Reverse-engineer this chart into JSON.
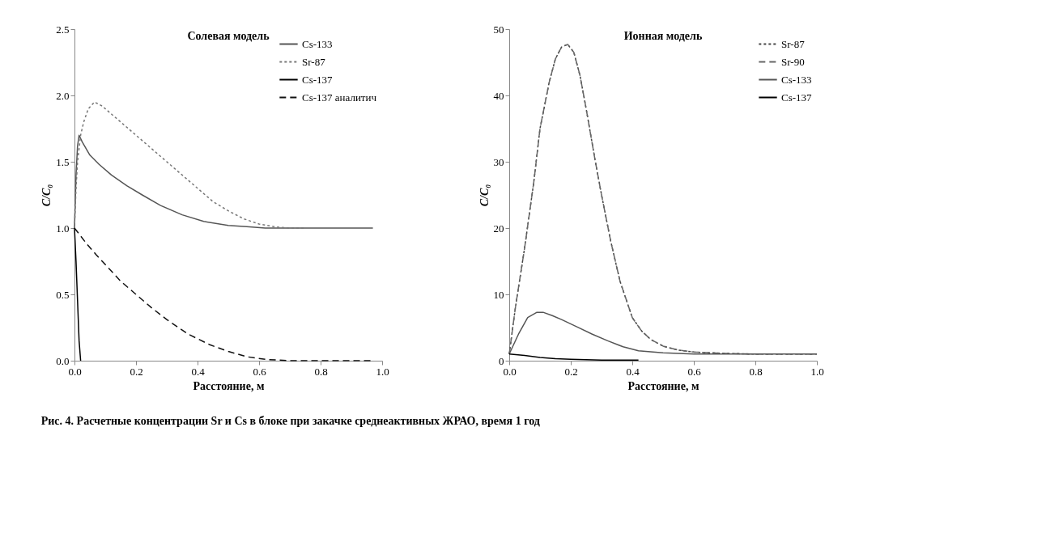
{
  "chart_data": [
    {
      "type": "line",
      "title": "Солевая модель",
      "annotations": [
        "Рис. 4. Расчетные концентрации Sr и Cs в блоке при закачке среднеактивных ЖРАО, время 1 год"
      ],
      "xlabel": "Расстояние, м",
      "ylabel": "C/C₀",
      "legend": "top right",
      "grid": false,
      "marker": "none",
      "xlim": [
        0,
        1.0
      ],
      "xticks": [
        {
          "value": 0,
          "label": "0.0"
        },
        {
          "value": 0.2,
          "label": "0.2"
        },
        {
          "value": 0.4,
          "label": "0.4"
        },
        {
          "value": 0.6,
          "label": "0.6"
        },
        {
          "value": 0.8,
          "label": "0.8"
        },
        {
          "value": 1,
          "label": "1.0"
        }
      ],
      "ylim": [
        0,
        2.5
      ],
      "yticks": [
        {
          "value": 0,
          "label": "0.0"
        },
        {
          "value": 0.5,
          "label": "0.5"
        },
        {
          "value": 1,
          "label": "1.0"
        },
        {
          "value": 1.5,
          "label": "1.5"
        },
        {
          "value": 2,
          "label": "2.0"
        },
        {
          "value": 2.5,
          "label": "2.5"
        }
      ],
      "series": [
        {
          "name": "Cs-133",
          "color": "#555555",
          "line_style": "solid",
          "x": [
            0,
            0.005,
            0.01,
            0.015,
            0.025,
            0.05,
            0.08,
            0.12,
            0.17,
            0.22,
            0.28,
            0.35,
            0.42,
            0.5,
            0.56,
            0.62,
            0.7,
            0.8,
            0.9,
            0.97
          ],
          "values": [
            1.0,
            1.4,
            1.62,
            1.7,
            1.65,
            1.55,
            1.48,
            1.4,
            1.32,
            1.25,
            1.17,
            1.1,
            1.05,
            1.02,
            1.01,
            1.0,
            1.0,
            1.0,
            1.0,
            1.0
          ]
        },
        {
          "name": "Sr-87",
          "color": "#777777",
          "line_style": "dotted",
          "x": [
            0,
            0.005,
            0.01,
            0.02,
            0.03,
            0.045,
            0.065,
            0.09,
            0.12,
            0.15,
            0.2,
            0.25,
            0.3,
            0.35,
            0.4,
            0.45,
            0.5,
            0.55,
            0.6,
            0.65,
            0.7,
            0.75
          ],
          "values": [
            1.0,
            1.3,
            1.5,
            1.7,
            1.8,
            1.9,
            1.95,
            1.92,
            1.86,
            1.8,
            1.7,
            1.6,
            1.5,
            1.4,
            1.3,
            1.2,
            1.13,
            1.07,
            1.03,
            1.01,
            1.0,
            1.0
          ]
        },
        {
          "name": "Cs-137",
          "color": "#000000",
          "line_style": "solid",
          "x": [
            0,
            0.005,
            0.01,
            0.015,
            0.02
          ],
          "values": [
            1.0,
            0.75,
            0.45,
            0.15,
            0
          ]
        },
        {
          "name": "Cs-137 аналитич",
          "color": "#111111",
          "line_style": "dashed",
          "x": [
            0,
            0.04,
            0.07,
            0.11,
            0.15,
            0.2,
            0.25,
            0.3,
            0.37,
            0.44,
            0.5,
            0.56,
            0.62,
            0.7,
            0.8,
            0.9,
            0.97
          ],
          "values": [
            1.0,
            0.88,
            0.8,
            0.7,
            0.6,
            0.5,
            0.4,
            0.31,
            0.2,
            0.12,
            0.07,
            0.03,
            0.01,
            0,
            0,
            0,
            0
          ]
        }
      ]
    },
    {
      "type": "line",
      "title": "Ионная модель",
      "xlabel": "Расстояние, м",
      "ylabel": "C/C₀",
      "legend": "top right",
      "grid": false,
      "marker": "none",
      "xlim": [
        0,
        1.0
      ],
      "xticks": [
        {
          "value": 0,
          "label": "0.0"
        },
        {
          "value": 0.2,
          "label": "0.2"
        },
        {
          "value": 0.4,
          "label": "0.4"
        },
        {
          "value": 0.6,
          "label": "0.6"
        },
        {
          "value": 0.8,
          "label": "0.8"
        },
        {
          "value": 1,
          "label": "1.0"
        }
      ],
      "ylim": [
        0,
        50
      ],
      "yticks": [
        0,
        10,
        20,
        30,
        40,
        50
      ],
      "series": [
        {
          "name": "Sr-87",
          "color": "#444444",
          "line_style": "dotted",
          "x": [
            0,
            0.02,
            0.05,
            0.08,
            0.1,
            0.13,
            0.15,
            0.17,
            0.19,
            0.21,
            0.23,
            0.25,
            0.28,
            0.3,
            0.33,
            0.36,
            0.4,
            0.43,
            0.46,
            0.5,
            0.55,
            0.6,
            0.7,
            0.8,
            0.9,
            1.0
          ],
          "values": [
            1,
            8,
            17,
            27,
            35,
            42,
            45.5,
            47.3,
            47.7,
            46.5,
            43,
            38,
            30,
            25,
            18,
            12,
            6.5,
            4.5,
            3.2,
            2.2,
            1.6,
            1.3,
            1.1,
            1.0,
            1.0,
            1.0
          ]
        },
        {
          "name": "Sr-90",
          "color": "#666666",
          "line_style": "dashed",
          "x": [
            0,
            0.02,
            0.05,
            0.08,
            0.1,
            0.13,
            0.15,
            0.17,
            0.19,
            0.21,
            0.23,
            0.25,
            0.28,
            0.3,
            0.33,
            0.36,
            0.4,
            0.43,
            0.46,
            0.5,
            0.55,
            0.6,
            0.7,
            0.8,
            0.9,
            1.0
          ],
          "values": [
            1,
            8,
            17,
            27,
            35,
            42,
            45.5,
            47.3,
            47.7,
            46.5,
            43,
            38,
            30,
            25,
            18,
            12,
            6.5,
            4.5,
            3.2,
            2.2,
            1.6,
            1.3,
            1.1,
            1.0,
            1.0,
            1.0
          ]
        },
        {
          "name": "Cs-133",
          "color": "#555555",
          "line_style": "solid",
          "x": [
            0,
            0.03,
            0.06,
            0.09,
            0.11,
            0.14,
            0.17,
            0.22,
            0.27,
            0.32,
            0.37,
            0.42,
            0.5,
            0.6,
            0.7,
            0.8,
            0.9,
            1.0
          ],
          "values": [
            1,
            4,
            6.5,
            7.3,
            7.3,
            6.8,
            6.2,
            5.1,
            4.0,
            3.0,
            2.1,
            1.5,
            1.2,
            1.0,
            1.0,
            1.0,
            1.0,
            1.0
          ]
        },
        {
          "name": "Cs-137",
          "color": "#000000",
          "line_style": "solid",
          "x": [
            0,
            0.05,
            0.1,
            0.15,
            0.2,
            0.3,
            0.42
          ],
          "values": [
            1.0,
            0.8,
            0.5,
            0.3,
            0.2,
            0.1,
            0.1
          ]
        }
      ]
    }
  ]
}
